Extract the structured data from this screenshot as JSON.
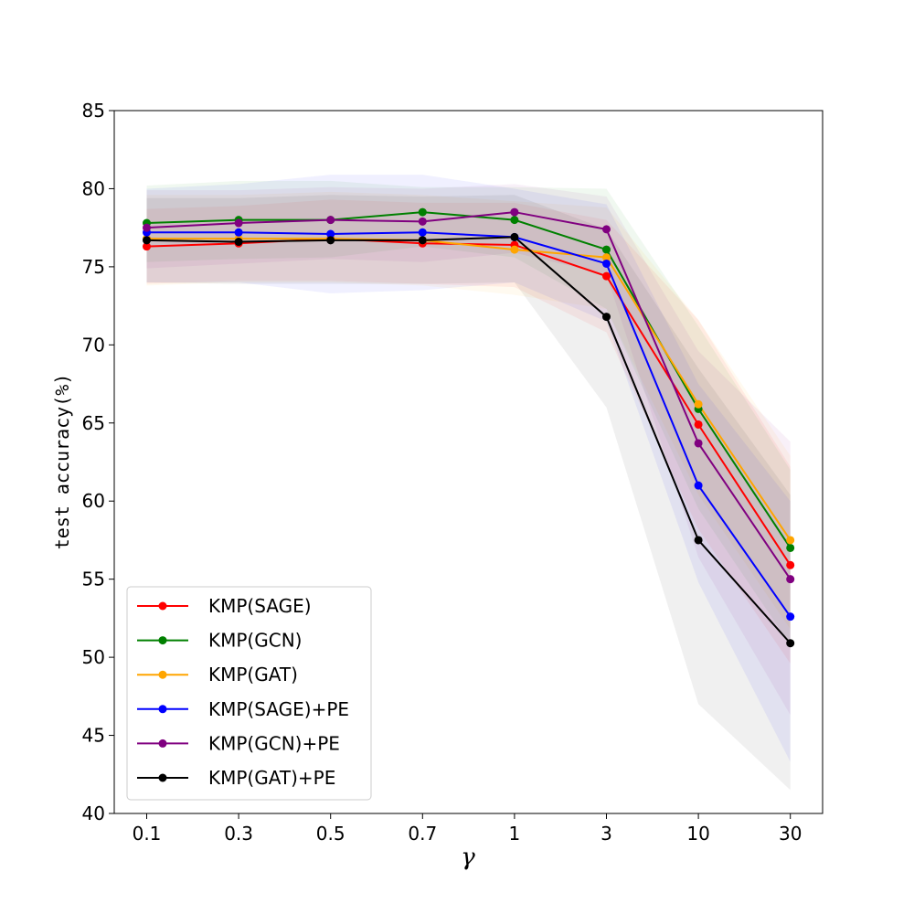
{
  "chart_data": {
    "type": "line",
    "title": "",
    "xlabel": "γ",
    "ylabel": "test accuracy(%)",
    "categories": [
      "0.1",
      "0.3",
      "0.5",
      "0.7",
      "1",
      "3",
      "10",
      "30"
    ],
    "ylim": [
      40,
      85
    ],
    "yticks": [
      "40",
      "45",
      "50",
      "55",
      "60",
      "65",
      "70",
      "75",
      "80",
      "85"
    ],
    "legend_position": "lower-left",
    "series": [
      {
        "name": "KMP(SAGE)",
        "color": "#ff0000",
        "values": [
          76.3,
          76.5,
          76.8,
          76.5,
          76.4,
          74.4,
          64.9,
          55.9
        ],
        "lower": [
          73.9,
          74.1,
          74.1,
          73.9,
          73.7,
          70.8,
          58.2,
          49.6
        ],
        "upper": [
          78.7,
          78.9,
          79.3,
          79.1,
          79.1,
          78.0,
          71.6,
          62.2
        ]
      },
      {
        "name": "KMP(GCN)",
        "color": "#008000",
        "values": [
          77.8,
          78.0,
          78.0,
          78.5,
          78.0,
          76.1,
          65.9,
          57.0
        ],
        "lower": [
          75.3,
          75.5,
          75.6,
          76.3,
          75.6,
          72.3,
          59.5,
          50.8
        ],
        "upper": [
          80.2,
          80.5,
          80.5,
          80.1,
          80.1,
          80.0,
          71.2,
          62.0
        ]
      },
      {
        "name": "KMP(GAT)",
        "color": "#ffa500",
        "values": [
          76.8,
          76.8,
          76.8,
          76.7,
          76.1,
          75.6,
          66.2,
          57.5
        ],
        "lower": [
          73.8,
          74.0,
          74.0,
          73.8,
          73.2,
          72.3,
          60.4,
          51.8
        ],
        "upper": [
          79.6,
          79.6,
          79.8,
          79.6,
          79.2,
          78.8,
          71.6,
          62.9
        ]
      },
      {
        "name": "KMP(SAGE)+PE",
        "color": "#0000ff",
        "values": [
          77.2,
          77.2,
          77.1,
          77.2,
          76.9,
          75.2,
          61.0,
          52.6
        ],
        "lower": [
          74.0,
          74.0,
          73.3,
          73.5,
          74.0,
          71.5,
          54.8,
          43.3
        ],
        "upper": [
          80.0,
          80.3,
          80.9,
          80.9,
          80.0,
          79.0,
          67.5,
          60.0
        ]
      },
      {
        "name": "KMP(GCN)+PE",
        "color": "#800080",
        "values": [
          77.5,
          77.8,
          78.0,
          77.9,
          78.5,
          77.4,
          63.7,
          55.0
        ],
        "lower": [
          74.9,
          75.2,
          75.5,
          75.3,
          75.9,
          74.5,
          56.4,
          46.3
        ],
        "upper": [
          79.9,
          79.9,
          80.1,
          80.0,
          80.3,
          79.5,
          69.6,
          63.8
        ]
      },
      {
        "name": "KMP(GAT)+PE",
        "color": "#000000",
        "values": [
          76.7,
          76.6,
          76.7,
          76.7,
          76.9,
          71.8,
          57.5,
          50.9
        ],
        "lower": [
          74.0,
          73.9,
          73.9,
          73.9,
          74.0,
          66.0,
          47.0,
          41.5
        ],
        "upper": [
          79.4,
          79.4,
          79.6,
          79.5,
          79.6,
          77.4,
          68.5,
          60.4
        ]
      }
    ]
  }
}
